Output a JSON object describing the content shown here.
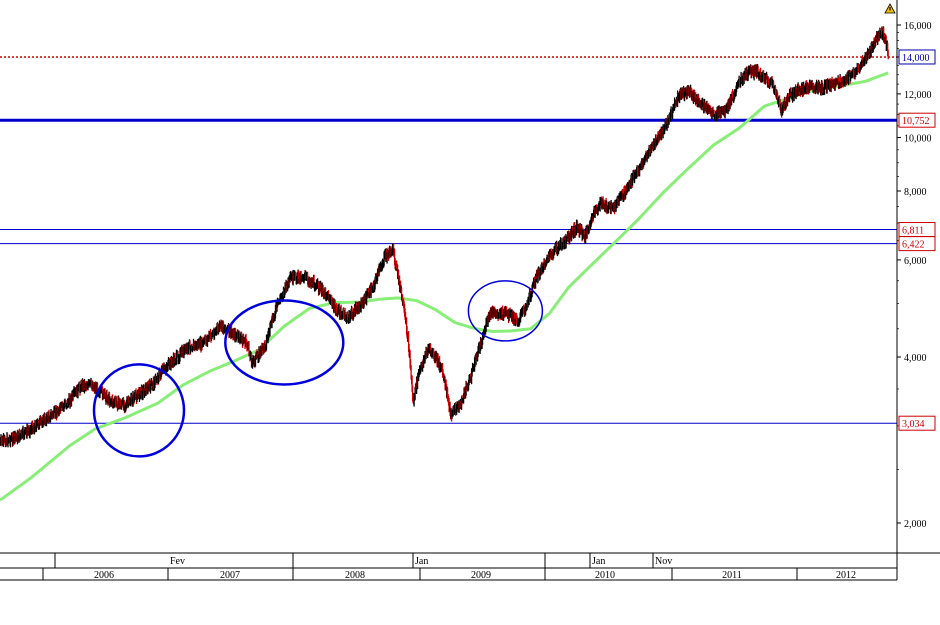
{
  "chart_data": {
    "type": "line",
    "title": "",
    "xlabel": "",
    "ylabel": "",
    "y_scale": "log",
    "ylim": [
      1800,
      17000
    ],
    "y_ticks": [
      "2,000",
      "4,000",
      "6,000",
      "8,000",
      "10,000",
      "12,000",
      "14,000",
      "16,000"
    ],
    "y_tick_values": [
      2000,
      4000,
      6000,
      8000,
      10000,
      12000,
      14000,
      16000
    ],
    "x_axis": {
      "month_labels": [
        "Fev",
        "Jan",
        "Jan",
        "Nov"
      ],
      "year_labels": [
        "2006",
        "2007",
        "2008",
        "2009",
        "2010",
        "2011",
        "2012"
      ]
    },
    "series": [
      {
        "role": "price",
        "style": "candlestick",
        "color": "#000000",
        "down_color": "#cc0000",
        "points": [
          [
            2005.45,
            2800
          ],
          [
            2005.6,
            2870
          ],
          [
            2005.75,
            3020
          ],
          [
            2005.9,
            3180
          ],
          [
            2006.0,
            3330
          ],
          [
            2006.1,
            3560
          ],
          [
            2006.18,
            3560
          ],
          [
            2006.25,
            3450
          ],
          [
            2006.35,
            3300
          ],
          [
            2006.45,
            3280
          ],
          [
            2006.55,
            3430
          ],
          [
            2006.65,
            3550
          ],
          [
            2006.75,
            3800
          ],
          [
            2006.85,
            3990
          ],
          [
            2006.95,
            4180
          ],
          [
            2007.05,
            4220
          ],
          [
            2007.2,
            4550
          ],
          [
            2007.3,
            4400
          ],
          [
            2007.4,
            4250
          ],
          [
            2007.45,
            3900
          ],
          [
            2007.55,
            4200
          ],
          [
            2007.65,
            5000
          ],
          [
            2007.75,
            5550
          ],
          [
            2007.85,
            5600
          ],
          [
            2007.95,
            5400
          ],
          [
            2008.05,
            5150
          ],
          [
            2008.1,
            4900
          ],
          [
            2008.2,
            4700
          ],
          [
            2008.3,
            4950
          ],
          [
            2008.4,
            5350
          ],
          [
            2008.5,
            6100
          ],
          [
            2008.56,
            6250
          ],
          [
            2008.62,
            5300
          ],
          [
            2008.68,
            4300
          ],
          [
            2008.72,
            3300
          ],
          [
            2008.76,
            3700
          ],
          [
            2008.84,
            4150
          ],
          [
            2008.94,
            3850
          ],
          [
            2009.02,
            3150
          ],
          [
            2009.1,
            3300
          ],
          [
            2009.18,
            3700
          ],
          [
            2009.25,
            4200
          ],
          [
            2009.33,
            4800
          ],
          [
            2009.45,
            4800
          ],
          [
            2009.55,
            4650
          ],
          [
            2009.62,
            5000
          ],
          [
            2009.7,
            5600
          ],
          [
            2009.78,
            6000
          ],
          [
            2009.86,
            6300
          ],
          [
            2009.94,
            6550
          ],
          [
            2010.02,
            6900
          ],
          [
            2010.08,
            6600
          ],
          [
            2010.14,
            7200
          ],
          [
            2010.2,
            7600
          ],
          [
            2010.3,
            7400
          ],
          [
            2010.4,
            8000
          ],
          [
            2010.5,
            8700
          ],
          [
            2010.6,
            9500
          ],
          [
            2010.7,
            10300
          ],
          [
            2010.76,
            11000
          ],
          [
            2010.82,
            11900
          ],
          [
            2010.9,
            12100
          ],
          [
            2011.0,
            11500
          ],
          [
            2011.06,
            11200
          ],
          [
            2011.12,
            11000
          ],
          [
            2011.2,
            11200
          ],
          [
            2011.3,
            12600
          ],
          [
            2011.36,
            13100
          ],
          [
            2011.44,
            13200
          ],
          [
            2011.5,
            12800
          ],
          [
            2011.56,
            12500
          ],
          [
            2011.64,
            11200
          ],
          [
            2011.7,
            11900
          ],
          [
            2011.78,
            12200
          ],
          [
            2011.86,
            12400
          ],
          [
            2011.94,
            12300
          ],
          [
            2012.02,
            12400
          ],
          [
            2012.1,
            12600
          ],
          [
            2012.18,
            12900
          ],
          [
            2012.26,
            13500
          ],
          [
            2012.34,
            14400
          ],
          [
            2012.4,
            15300
          ],
          [
            2012.44,
            15500
          ],
          [
            2012.48,
            14300
          ]
        ]
      },
      {
        "role": "moving-average",
        "color": "#88ee77",
        "points": [
          [
            2005.45,
            2200
          ],
          [
            2005.7,
            2420
          ],
          [
            2006.0,
            2760
          ],
          [
            2006.2,
            2960
          ],
          [
            2006.45,
            3110
          ],
          [
            2006.7,
            3300
          ],
          [
            2006.9,
            3560
          ],
          [
            2007.1,
            3760
          ],
          [
            2007.3,
            3930
          ],
          [
            2007.5,
            4120
          ],
          [
            2007.7,
            4550
          ],
          [
            2007.9,
            4900
          ],
          [
            2008.1,
            5020
          ],
          [
            2008.3,
            5030
          ],
          [
            2008.45,
            5090
          ],
          [
            2008.6,
            5120
          ],
          [
            2008.75,
            5060
          ],
          [
            2008.9,
            4870
          ],
          [
            2009.05,
            4620
          ],
          [
            2009.2,
            4510
          ],
          [
            2009.35,
            4450
          ],
          [
            2009.5,
            4460
          ],
          [
            2009.65,
            4500
          ],
          [
            2009.8,
            4800
          ],
          [
            2009.95,
            5350
          ],
          [
            2010.1,
            5780
          ],
          [
            2010.3,
            6400
          ],
          [
            2010.5,
            7100
          ],
          [
            2010.7,
            7950
          ],
          [
            2010.9,
            8800
          ],
          [
            2011.1,
            9700
          ],
          [
            2011.3,
            10400
          ],
          [
            2011.5,
            11400
          ],
          [
            2011.7,
            11800
          ],
          [
            2011.9,
            12200
          ],
          [
            2012.1,
            12400
          ],
          [
            2012.3,
            12650
          ],
          [
            2012.48,
            13100
          ]
        ]
      }
    ],
    "horizontal_lines": [
      {
        "value": 14000,
        "label": "14,000",
        "color": "#cc0000",
        "style": "dotted",
        "label_color": "#0000aa"
      },
      {
        "value": 10752,
        "label": "10,752",
        "color": "#0000cc",
        "style": "thick",
        "label_color": "#cc0000"
      },
      {
        "value": 6811,
        "label": "6,811",
        "color": "#0000cc",
        "style": "thin",
        "label_color": "#cc0000"
      },
      {
        "value": 6422,
        "label": "6,422",
        "color": "#0000cc",
        "style": "thin",
        "label_color": "#cc0000"
      },
      {
        "value": 3034,
        "label": "3,034",
        "color": "#0000cc",
        "style": "thin",
        "label_color": "#cc0000"
      }
    ],
    "annotations": [
      {
        "shape": "ellipse",
        "color": "#0000dd",
        "x_center": 2006.55,
        "y_center": 3200
      },
      {
        "shape": "ellipse",
        "color": "#0000dd",
        "x_center": 2007.7,
        "y_center": 4250
      },
      {
        "shape": "ellipse",
        "color": "#0000dd",
        "x_center": 2009.45,
        "y_center": 4850
      }
    ],
    "grid": false,
    "legend": "none",
    "corner_icon": "warning-triangle-icon"
  }
}
